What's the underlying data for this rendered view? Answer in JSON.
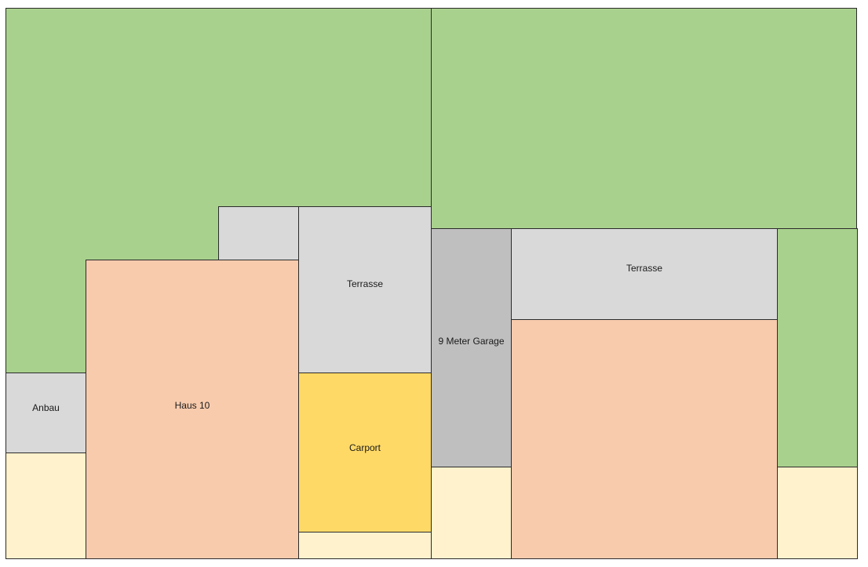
{
  "colors": {
    "garden": "#a9d18e",
    "paved": "#d9d9d9",
    "house": "#f8cbad",
    "carport": "#ffd966",
    "garage": "#bfbfbf",
    "frontyard": "#fff2cc"
  },
  "plot": {
    "labels": {
      "anbau": "Anbau",
      "haus10": "Haus 10",
      "terrasse_left": "Terrasse",
      "carport": "Carport",
      "garage": "9 Meter Garage",
      "terrasse_right": "Terrasse"
    }
  }
}
